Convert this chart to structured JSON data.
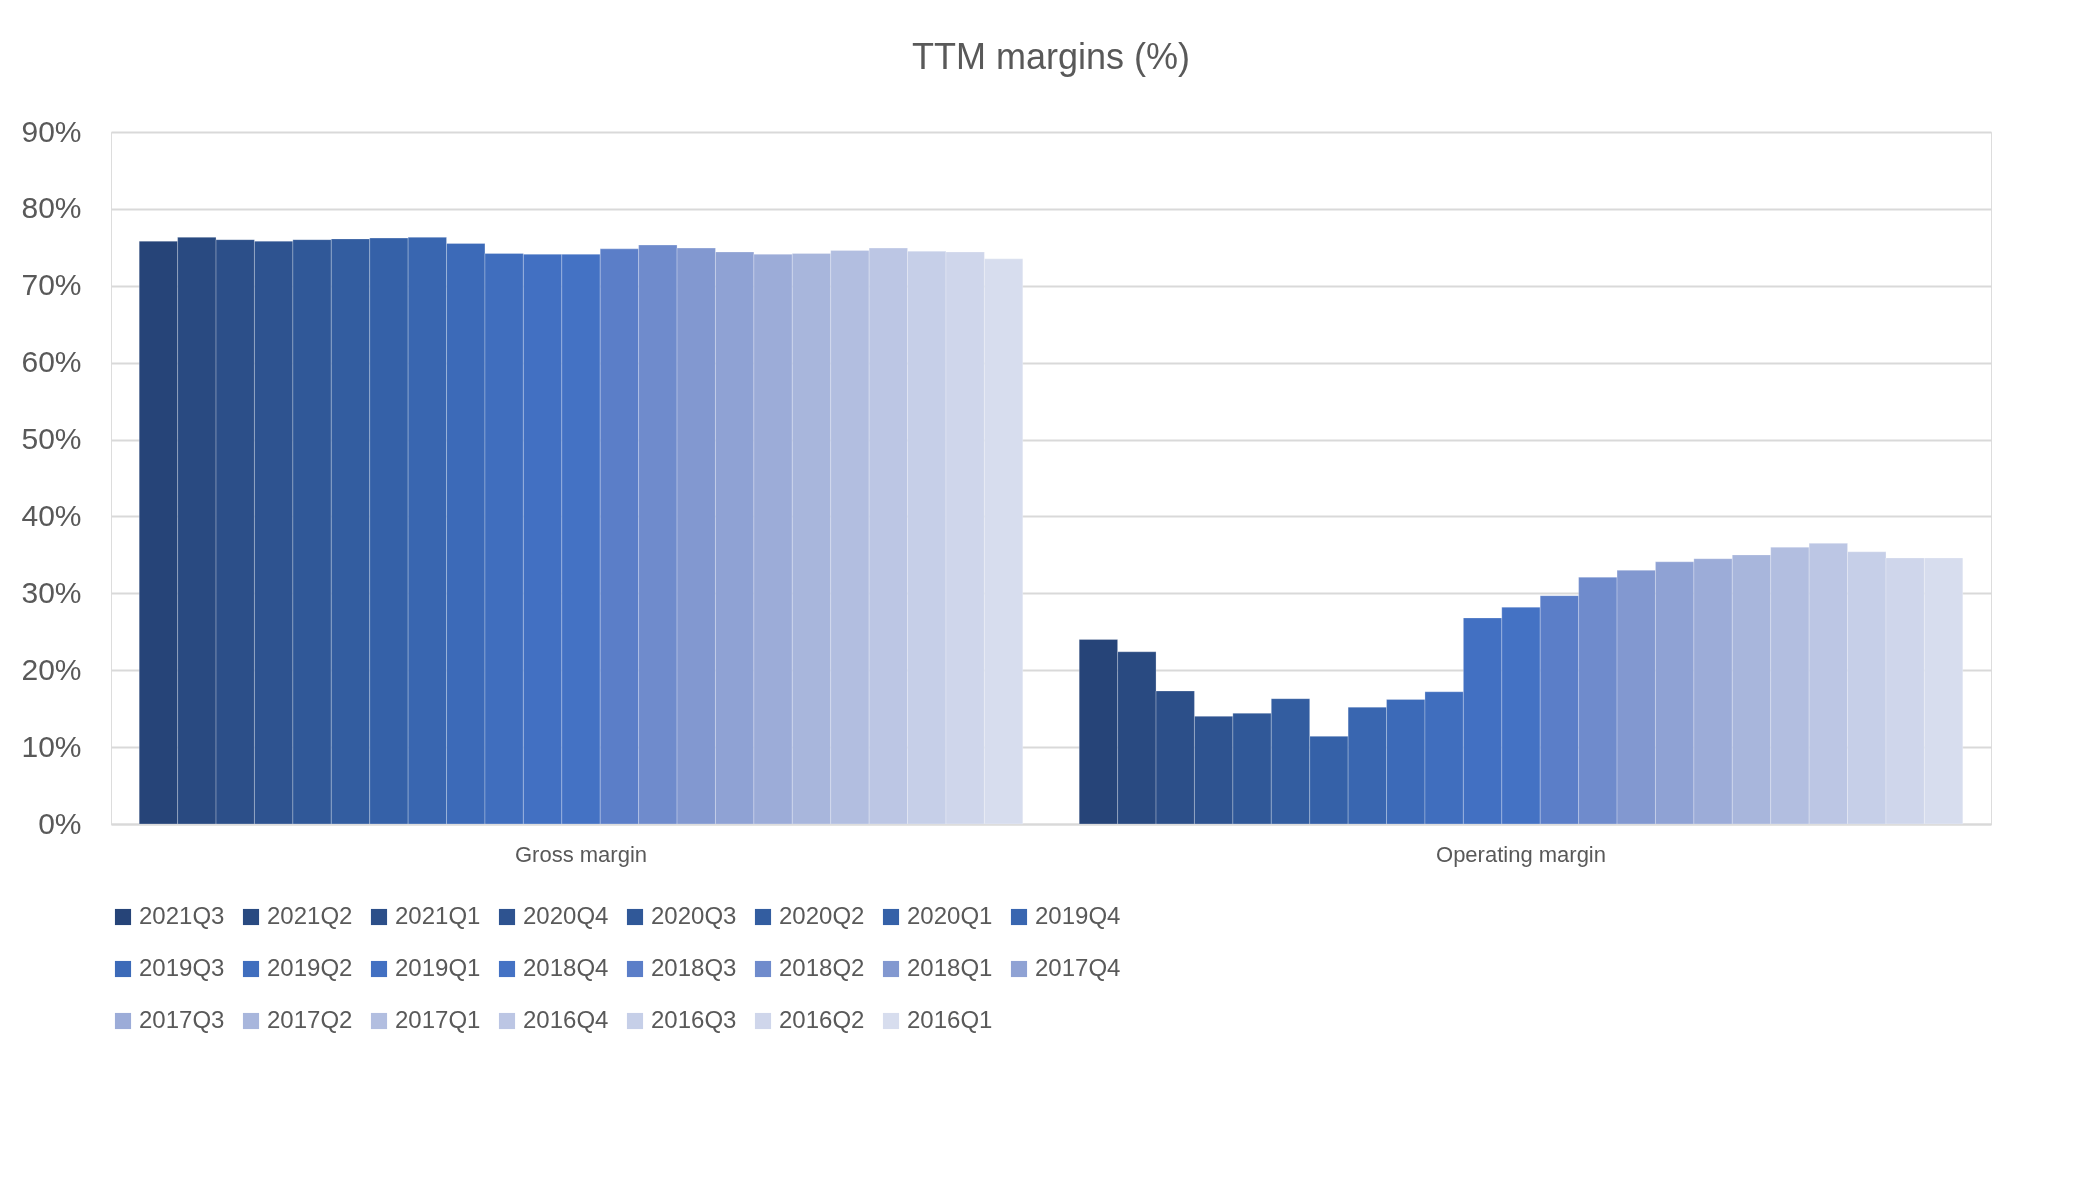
{
  "chart_data": {
    "type": "bar",
    "title": "TTM  margins (%)",
    "categories": [
      "Gross margin",
      "Operating margin"
    ],
    "ylim": [
      0,
      90
    ],
    "yticks": [
      {
        "value": 0,
        "label": "0%"
      },
      {
        "value": 10,
        "label": "10%"
      },
      {
        "value": 20,
        "label": "20%"
      },
      {
        "value": 30,
        "label": "30%"
      },
      {
        "value": 40,
        "label": "40%"
      },
      {
        "value": 50,
        "label": "50%"
      },
      {
        "value": 60,
        "label": "60%"
      },
      {
        "value": 70,
        "label": "70%"
      },
      {
        "value": 80,
        "label": "80%"
      },
      {
        "value": 90,
        "label": "90%"
      }
    ],
    "grid": "y",
    "legend": "bottom",
    "series": [
      {
        "name": "2021Q3",
        "color": "#264478",
        "values": [
          75.8,
          24.0
        ]
      },
      {
        "name": "2021Q2",
        "color": "#294a81",
        "values": [
          76.3,
          22.4
        ]
      },
      {
        "name": "2021Q1",
        "color": "#2c4f89",
        "values": [
          76.0,
          17.3
        ]
      },
      {
        "name": "2020Q4",
        "color": "#2e5390",
        "values": [
          75.8,
          14.0
        ]
      },
      {
        "name": "2020Q3",
        "color": "#305898",
        "values": [
          76.0,
          14.4
        ]
      },
      {
        "name": "2020Q2",
        "color": "#335da0",
        "values": [
          76.1,
          16.3
        ]
      },
      {
        "name": "2020Q1",
        "color": "#3561a8",
        "values": [
          76.2,
          11.4
        ]
      },
      {
        "name": "2019Q4",
        "color": "#3966b0",
        "values": [
          76.3,
          15.2
        ]
      },
      {
        "name": "2019Q3",
        "color": "#3c6ab8",
        "values": [
          75.5,
          16.2
        ]
      },
      {
        "name": "2019Q2",
        "color": "#406ebe",
        "values": [
          74.2,
          17.2
        ]
      },
      {
        "name": "2019Q1",
        "color": "#4270c2",
        "values": [
          74.1,
          26.8
        ]
      },
      {
        "name": "2018Q4",
        "color": "#4472c4",
        "values": [
          74.1,
          28.2
        ]
      },
      {
        "name": "2018Q3",
        "color": "#5b7ec8",
        "values": [
          74.8,
          29.7
        ]
      },
      {
        "name": "2018Q2",
        "color": "#6f8bcc",
        "values": [
          75.3,
          32.1
        ]
      },
      {
        "name": "2018Q1",
        "color": "#8298d0",
        "values": [
          74.9,
          33.0
        ]
      },
      {
        "name": "2017Q4",
        "color": "#8fa2d4",
        "values": [
          74.4,
          34.1
        ]
      },
      {
        "name": "2017Q3",
        "color": "#9cacd8",
        "values": [
          74.1,
          34.5
        ]
      },
      {
        "name": "2017Q2",
        "color": "#a8b6dc",
        "values": [
          74.2,
          35.0
        ]
      },
      {
        "name": "2017Q1",
        "color": "#b2bee0",
        "values": [
          74.6,
          36.0
        ]
      },
      {
        "name": "2016Q4",
        "color": "#bcc6e4",
        "values": [
          74.9,
          36.5
        ]
      },
      {
        "name": "2016Q3",
        "color": "#c6cfe8",
        "values": [
          74.5,
          35.4
        ]
      },
      {
        "name": "2016Q2",
        "color": "#cfd6eb",
        "values": [
          74.4,
          34.6
        ]
      },
      {
        "name": "2016Q1",
        "color": "#d7ddee",
        "values": [
          73.5,
          34.6
        ]
      }
    ]
  }
}
